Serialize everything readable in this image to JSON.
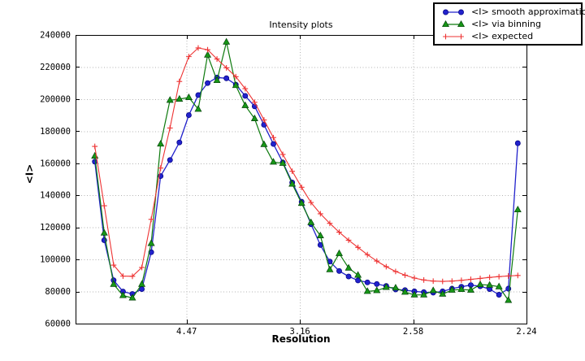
{
  "chart_data": {
    "type": "line",
    "title": "Intensity plots",
    "xlabel": "Resolution",
    "ylabel": "<I>",
    "grid": "dotted",
    "legend_position": "top-right, outside plot",
    "x_axis": {
      "note": "linear in 1/d^2; tick labels are resolution d in Angstrom",
      "min": 0.001,
      "max": 0.2,
      "ticks": [
        {
          "value": 0.05,
          "label": "4.47"
        },
        {
          "value": 0.1,
          "label": "3.16"
        },
        {
          "value": 0.15,
          "label": "2.58"
        },
        {
          "value": 0.2,
          "label": "2.24"
        }
      ]
    },
    "y_axis": {
      "min": 60000,
      "max": 240000,
      "tick_step": 20000,
      "tick_values": [
        60000,
        80000,
        100000,
        120000,
        140000,
        160000,
        180000,
        200000,
        220000,
        240000
      ],
      "tick_labels": [
        "60000",
        "80000",
        "100000",
        "120000",
        "140000",
        "160000",
        "180000",
        "200000",
        "220000",
        "240000"
      ]
    },
    "x_values": [
      0.0095,
      0.01365,
      0.0178,
      0.02194,
      0.02609,
      0.03024,
      0.03439,
      0.03854,
      0.04268,
      0.04683,
      0.05098,
      0.05513,
      0.05928,
      0.06342,
      0.06757,
      0.07172,
      0.07587,
      0.08002,
      0.08416,
      0.08831,
      0.09246,
      0.09661,
      0.10076,
      0.1049,
      0.10905,
      0.1132,
      0.11735,
      0.1215,
      0.12564,
      0.12979,
      0.13394,
      0.13809,
      0.14224,
      0.14638,
      0.15053,
      0.15468,
      0.15883,
      0.16298,
      0.16712,
      0.17127,
      0.17542,
      0.17957,
      0.18372,
      0.18786,
      0.19201,
      0.19616
    ],
    "series": [
      {
        "name": "<I> smooth approximation",
        "marker": "circle",
        "color": "#2222cc",
        "marker_color": "#2222cc",
        "marker_edge": "#000080",
        "values": [
          161000,
          112000,
          87000,
          80000,
          78500,
          81500,
          104500,
          152000,
          162000,
          173000,
          190000,
          202500,
          210000,
          213500,
          213000,
          209000,
          202000,
          195500,
          184000,
          172000,
          160500,
          148000,
          136000,
          122000,
          109000,
          98700,
          92800,
          89400,
          86900,
          85700,
          84700,
          83500,
          81300,
          80900,
          80100,
          79600,
          79300,
          80100,
          81800,
          83000,
          84000,
          83300,
          81500,
          78000,
          81800,
          172500
        ]
      },
      {
        "name": "<I> via binning",
        "marker": "triangle",
        "color": "#0d7a0d",
        "marker_color": "#179717",
        "marker_edge": "#04430a",
        "values": [
          164500,
          116500,
          84500,
          77500,
          76000,
          84500,
          110000,
          172000,
          199300,
          200000,
          201000,
          193700,
          227500,
          211600,
          235600,
          208500,
          196000,
          187800,
          171700,
          160750,
          160000,
          147000,
          135000,
          123000,
          114800,
          93600,
          103700,
          94650,
          90200,
          80100,
          80600,
          82600,
          82250,
          79600,
          77900,
          77900,
          80600,
          78400,
          80900,
          81300,
          80900,
          84350,
          84000,
          83000,
          74500,
          131000
        ]
      },
      {
        "name": "<I> expected",
        "marker": "plus",
        "color": "#ee3333",
        "marker_color": "#ee3333",
        "marker_edge": "#ee3333",
        "values": [
          170500,
          133500,
          96500,
          89600,
          89500,
          95000,
          125000,
          157000,
          182000,
          211000,
          226500,
          231900,
          230800,
          225000,
          219500,
          214000,
          206500,
          198000,
          187000,
          176000,
          165500,
          155000,
          145000,
          135500,
          128500,
          122500,
          117000,
          112000,
          107500,
          103000,
          99000,
          95500,
          92500,
          90200,
          88400,
          87200,
          86500,
          86300,
          86500,
          87000,
          87600,
          88200,
          88800,
          89300,
          89700,
          90000
        ]
      }
    ],
    "colors": {
      "frame": "#000000",
      "grid": "#b3b3b3",
      "background": "#ffffff"
    }
  }
}
